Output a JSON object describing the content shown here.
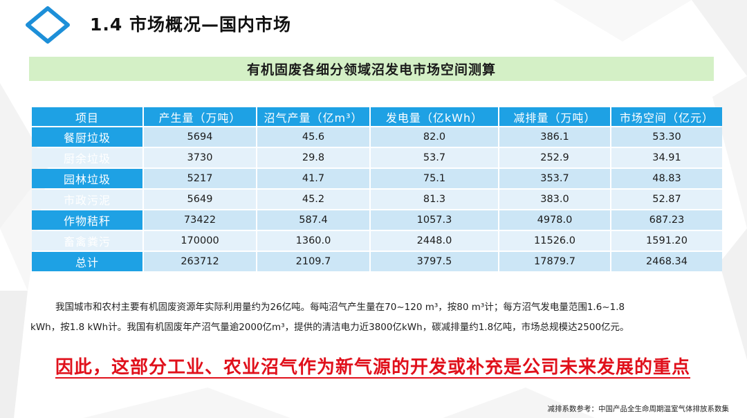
{
  "colors": {
    "header_blue": "#1ea1e4",
    "banner_green": "#d4f0c6",
    "row_light_blue": "#cce6f6",
    "conclusion_red": "#e0101b",
    "logo_blue": "#1d8fd8"
  },
  "header": {
    "icon": "diamond-logo-icon",
    "title": "1.4 市场概况—国内市场"
  },
  "banner": {
    "title": "有机固废各细分领域沼发电市场空间测算"
  },
  "table": {
    "columns": [
      "项目",
      "产生量（万吨）",
      "沼气产量（亿m³）",
      "发电量（亿kWh）",
      "减排量（万吨）",
      "市场空间（亿元）"
    ],
    "rows": [
      {
        "item": "餐厨垃圾",
        "production": "5694",
        "biogas": "45.6",
        "power": "82.0",
        "reduction": "386.1",
        "market": "53.30"
      },
      {
        "item": "厨余垃圾",
        "production": "3730",
        "biogas": "29.8",
        "power": "53.7",
        "reduction": "252.9",
        "market": "34.91"
      },
      {
        "item": "园林垃圾",
        "production": "5217",
        "biogas": "41.7",
        "power": "75.1",
        "reduction": "353.7",
        "market": "48.83"
      },
      {
        "item": "市政污泥",
        "production": "5649",
        "biogas": "45.2",
        "power": "81.3",
        "reduction": "383.0",
        "market": "52.87"
      },
      {
        "item": "作物秸秆",
        "production": "73422",
        "biogas": "587.4",
        "power": "1057.3",
        "reduction": "4978.0",
        "market": "687.23"
      },
      {
        "item": "畜禽粪污",
        "production": "170000",
        "biogas": "1360.0",
        "power": "2448.0",
        "reduction": "11526.0",
        "market": "1591.20"
      },
      {
        "item": "总计",
        "production": "263712",
        "biogas": "2109.7",
        "power": "3797.5",
        "reduction": "17879.7",
        "market": "2468.34"
      }
    ]
  },
  "note": {
    "line1": "我国城市和农村主要有机固废资源年实际利用量约为26亿吨。每吨沼气产生量在70~120 m³，按80 m³计；每方沼气发电量范围1.6~1.8",
    "line2": "kWh，按1.8 kWh计。我国有机固废年产沼气量逾2000亿m³，提供的清洁电力近3800亿kWh，碳减排量约1.8亿吨，市场总规模达2500亿元。"
  },
  "conclusion": "因此，这部分工业、农业沼气作为新气源的开发或补充是公司未来发展的重点",
  "source": "减排系数参考：中国产品全生命周期温室气体排放系数集"
}
